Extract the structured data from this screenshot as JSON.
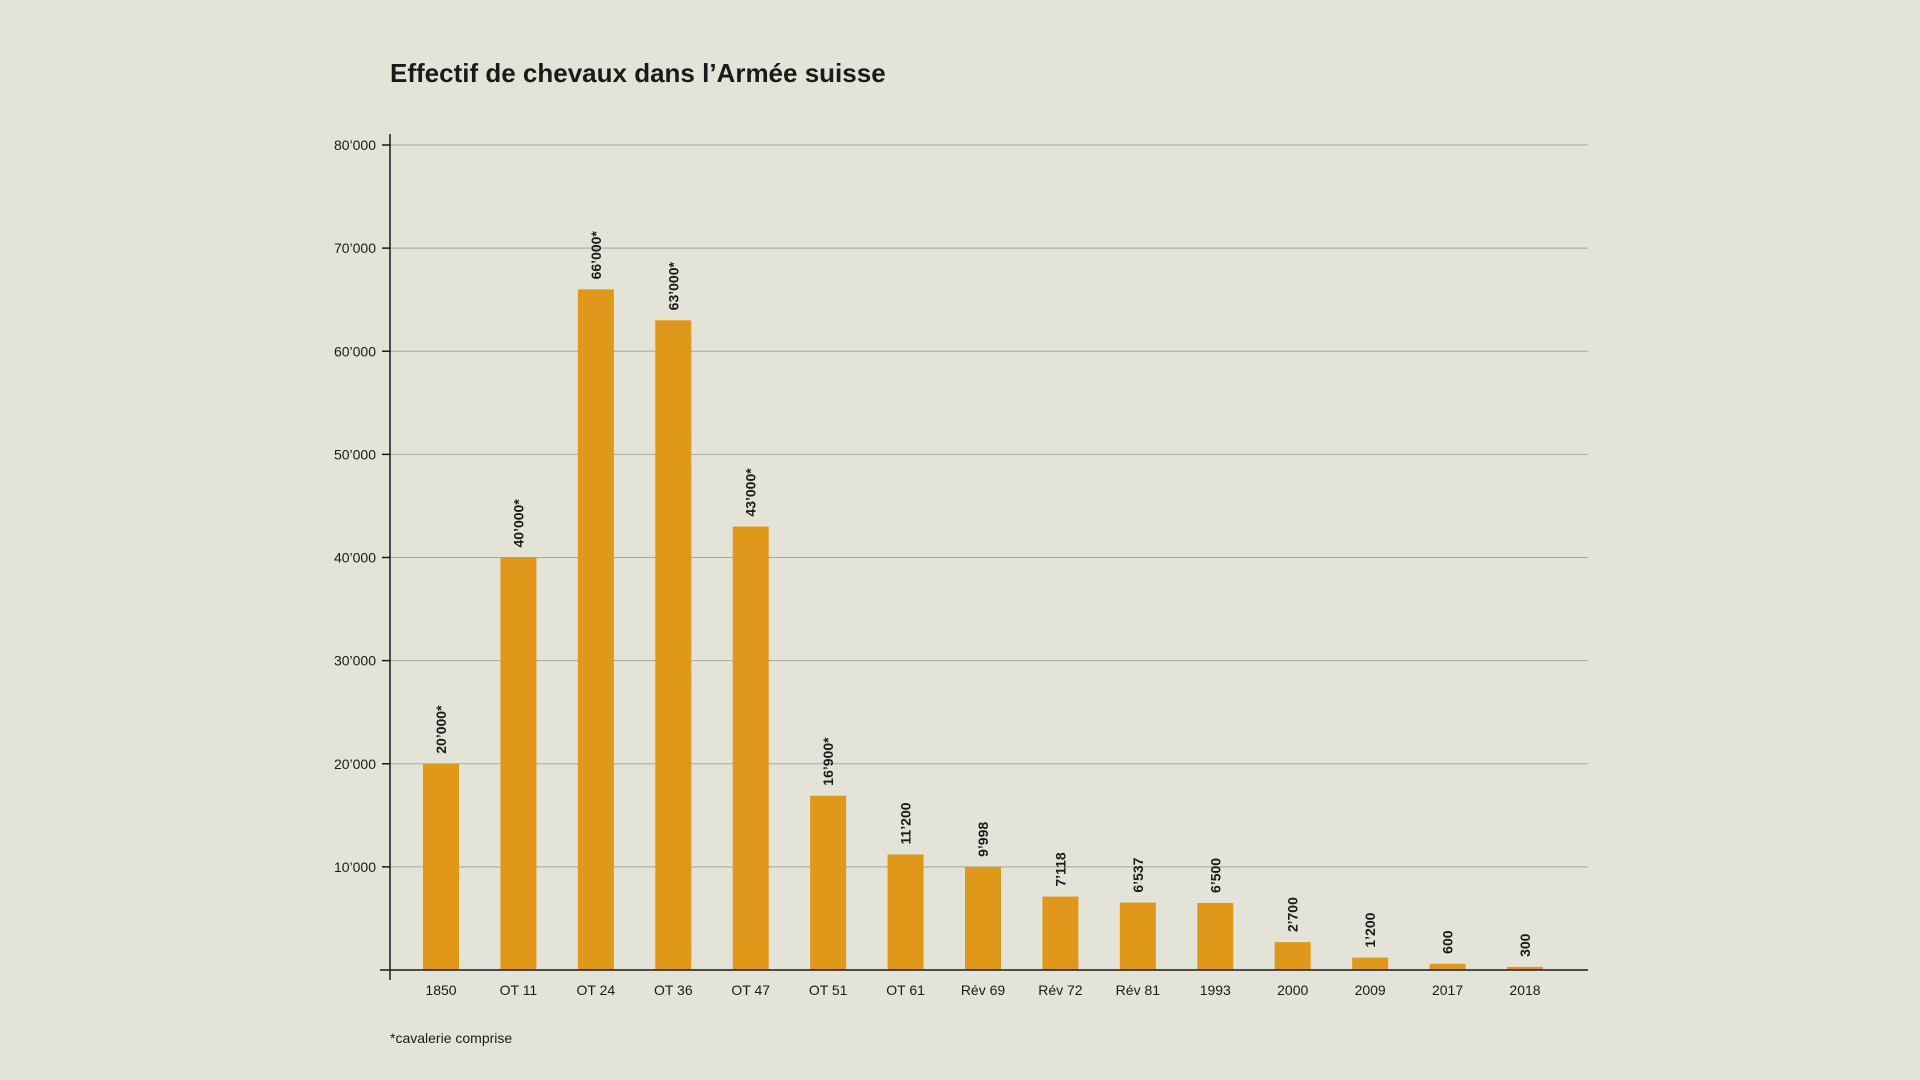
{
  "chart_data": {
    "type": "bar",
    "title": "Effectif de chevaux dans l’Armée suisse",
    "categories": [
      "1850",
      "OT 11",
      "OT 24",
      "OT 36",
      "OT 47",
      "OT 51",
      "OT 61",
      "Rév 69",
      "Rév 72",
      "Rév 81",
      "1993",
      "2000",
      "2009",
      "2017",
      "2018"
    ],
    "values": [
      20000,
      40000,
      66000,
      63000,
      43000,
      16900,
      11200,
      9998,
      7118,
      6537,
      6500,
      2700,
      1200,
      600,
      300
    ],
    "value_labels": [
      "20’000*",
      "40’000*",
      "66’000*",
      "63’000*",
      "43’000*",
      "16’900*",
      "11’200",
      "9’998",
      "7’118",
      "6’537",
      "6’500",
      "2’700",
      "1’200",
      "600",
      "300"
    ],
    "yticks": [
      10000,
      20000,
      30000,
      40000,
      50000,
      60000,
      70000,
      80000
    ],
    "ytick_labels": [
      "10’000",
      "20’000",
      "30’000",
      "40’000",
      "50’000",
      "60’000",
      "70’000",
      "80’000"
    ],
    "ylim": [
      0,
      80000
    ],
    "grid": true,
    "xlabel": "",
    "ylabel": "",
    "footnote": "*cavalerie comprise",
    "bar_color": "#e0981b",
    "background_color": "#e4e3d8"
  }
}
